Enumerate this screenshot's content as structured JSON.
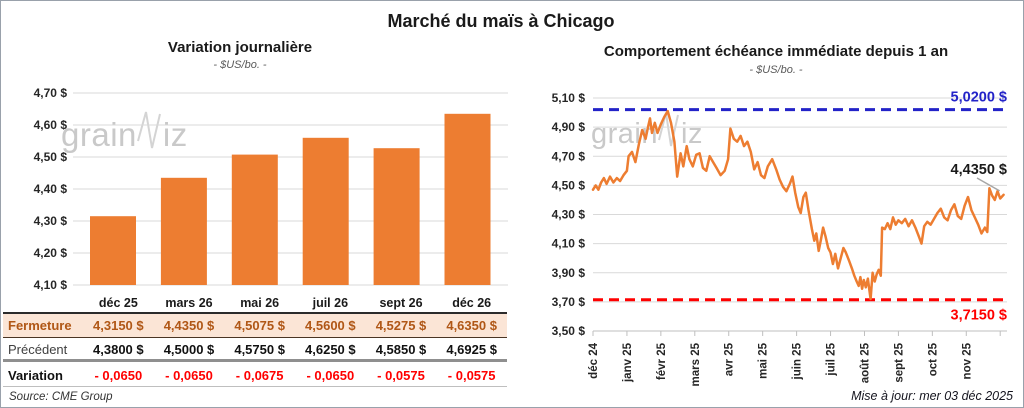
{
  "page": {
    "title": "Marché du maïs à Chicago",
    "source": "Source: CME Group",
    "updated": "Mise à jour: mer 03 déc 2025",
    "watermark_prefix": "grain",
    "watermark_suffix": "iz"
  },
  "colors": {
    "orange": "#ED7D31",
    "resistance_blue": "#2323C8",
    "support_red": "#FF0000",
    "close_row_bg": "#FBE5D6",
    "close_text": "#B05716",
    "gridline": "#D9D9D9",
    "axis": "#BFBFBF"
  },
  "chart_data": [
    {
      "type": "bar",
      "title": "Variation journalière",
      "subtitle": "- $US/bo. -",
      "categories": [
        "déc 25",
        "mars 26",
        "mai 26",
        "juil 26",
        "sept 26",
        "déc 26"
      ],
      "values": [
        4.315,
        4.435,
        4.5075,
        4.56,
        4.5275,
        4.635
      ],
      "ylim": [
        4.1,
        4.7
      ],
      "grid": true,
      "bar_color": "#ED7D31",
      "yticks": [
        {
          "v": 4.7,
          "label": "4,70 $"
        },
        {
          "v": 4.6,
          "label": "4,60 $"
        },
        {
          "v": 4.5,
          "label": "4,50 $"
        },
        {
          "v": 4.4,
          "label": "4,40 $"
        },
        {
          "v": 4.3,
          "label": "4,30 $"
        },
        {
          "v": 4.2,
          "label": "4,20 $"
        },
        {
          "v": 4.1,
          "label": "4,10 $"
        }
      ]
    },
    {
      "type": "line",
      "title": "Comportement échéance immédiate depuis 1 an",
      "subtitle": "- $US/bo. -",
      "ylim": [
        3.5,
        5.1
      ],
      "xmax": 12.2,
      "grid": true,
      "series_color": "#ED7D31",
      "yticks": [
        {
          "v": 5.1,
          "label": "5,10 $"
        },
        {
          "v": 4.9,
          "label": "4,90 $"
        },
        {
          "v": 4.7,
          "label": "4,70 $"
        },
        {
          "v": 4.5,
          "label": "4,50 $"
        },
        {
          "v": 4.3,
          "label": "4,30 $"
        },
        {
          "v": 4.1,
          "label": "4,10 $"
        },
        {
          "v": 3.9,
          "label": "3,90 $"
        },
        {
          "v": 3.7,
          "label": "3,70 $"
        },
        {
          "v": 3.5,
          "label": "3,50 $"
        }
      ],
      "xticks": [
        {
          "m": 0,
          "label": "déc 24"
        },
        {
          "m": 1,
          "label": "janv 25"
        },
        {
          "m": 2,
          "label": "févr 25"
        },
        {
          "m": 3,
          "label": "mars 25"
        },
        {
          "m": 4,
          "label": "avr 25"
        },
        {
          "m": 5,
          "label": "mai 25"
        },
        {
          "m": 6,
          "label": "juin 25"
        },
        {
          "m": 7,
          "label": "juil 25"
        },
        {
          "m": 8,
          "label": "août 25"
        },
        {
          "m": 9,
          "label": "sept 25"
        },
        {
          "m": 10,
          "label": "oct 25"
        },
        {
          "m": 11,
          "label": "nov 25"
        }
      ],
      "reference_lines": [
        {
          "value": 5.02,
          "label": "5,0200 $",
          "color": "#2323C8"
        },
        {
          "value": 3.715,
          "label": "3,7150 $",
          "color": "#FF0000"
        }
      ],
      "last_point": {
        "value": 4.435,
        "label": "4,4350 $"
      },
      "points": [
        [
          0,
          4.47
        ],
        [
          0.08,
          4.5
        ],
        [
          0.16,
          4.47
        ],
        [
          0.24,
          4.52
        ],
        [
          0.32,
          4.55
        ],
        [
          0.4,
          4.51
        ],
        [
          0.5,
          4.56
        ],
        [
          0.6,
          4.52
        ],
        [
          0.7,
          4.55
        ],
        [
          0.8,
          4.53
        ],
        [
          0.9,
          4.57
        ],
        [
          1.0,
          4.6
        ],
        [
          1.05,
          4.7
        ],
        [
          1.15,
          4.73
        ],
        [
          1.25,
          4.66
        ],
        [
          1.35,
          4.78
        ],
        [
          1.45,
          4.88
        ],
        [
          1.55,
          4.82
        ],
        [
          1.62,
          4.9
        ],
        [
          1.68,
          4.96
        ],
        [
          1.74,
          4.86
        ],
        [
          1.82,
          4.93
        ],
        [
          1.9,
          4.86
        ],
        [
          2.0,
          4.92
        ],
        [
          2.1,
          4.97
        ],
        [
          2.2,
          5.01
        ],
        [
          2.3,
          4.93
        ],
        [
          2.4,
          4.8
        ],
        [
          2.48,
          4.56
        ],
        [
          2.58,
          4.72
        ],
        [
          2.66,
          4.63
        ],
        [
          2.76,
          4.77
        ],
        [
          2.84,
          4.68
        ],
        [
          2.94,
          4.63
        ],
        [
          3.04,
          4.71
        ],
        [
          3.14,
          4.72
        ],
        [
          3.24,
          4.62
        ],
        [
          3.34,
          4.6
        ],
        [
          3.44,
          4.7
        ],
        [
          3.54,
          4.66
        ],
        [
          3.64,
          4.62
        ],
        [
          3.76,
          4.57
        ],
        [
          3.88,
          4.6
        ],
        [
          3.98,
          4.68
        ],
        [
          4.05,
          4.89
        ],
        [
          4.15,
          4.82
        ],
        [
          4.25,
          4.8
        ],
        [
          4.35,
          4.84
        ],
        [
          4.45,
          4.77
        ],
        [
          4.55,
          4.8
        ],
        [
          4.65,
          4.73
        ],
        [
          4.75,
          4.61
        ],
        [
          4.85,
          4.66
        ],
        [
          4.95,
          4.57
        ],
        [
          5.05,
          4.55
        ],
        [
          5.15,
          4.63
        ],
        [
          5.28,
          4.68
        ],
        [
          5.4,
          4.61
        ],
        [
          5.5,
          4.54
        ],
        [
          5.6,
          4.49
        ],
        [
          5.7,
          4.46
        ],
        [
          5.8,
          4.51
        ],
        [
          5.88,
          4.56
        ],
        [
          5.96,
          4.45
        ],
        [
          6.05,
          4.35
        ],
        [
          6.12,
          4.31
        ],
        [
          6.2,
          4.42
        ],
        [
          6.27,
          4.45
        ],
        [
          6.35,
          4.33
        ],
        [
          6.45,
          4.2
        ],
        [
          6.52,
          4.12
        ],
        [
          6.58,
          4.17
        ],
        [
          6.65,
          4.05
        ],
        [
          6.72,
          4.13
        ],
        [
          6.78,
          4.21
        ],
        [
          6.85,
          4.15
        ],
        [
          6.93,
          4.07
        ],
        [
          7.0,
          4.04
        ],
        [
          7.07,
          3.96
        ],
        [
          7.14,
          4.03
        ],
        [
          7.22,
          3.93
        ],
        [
          7.3,
          4.0
        ],
        [
          7.38,
          4.07
        ],
        [
          7.45,
          4.04
        ],
        [
          7.55,
          3.98
        ],
        [
          7.63,
          3.93
        ],
        [
          7.7,
          3.88
        ],
        [
          7.77,
          3.84
        ],
        [
          7.83,
          3.81
        ],
        [
          7.88,
          3.87
        ],
        [
          7.93,
          3.79
        ],
        [
          7.98,
          3.85
        ],
        [
          8.04,
          3.8
        ],
        [
          8.1,
          3.86
        ],
        [
          8.14,
          3.79
        ],
        [
          8.18,
          3.72
        ],
        [
          8.24,
          3.9
        ],
        [
          8.3,
          3.84
        ],
        [
          8.36,
          3.89
        ],
        [
          8.42,
          3.92
        ],
        [
          8.48,
          3.88
        ],
        [
          8.52,
          4.21
        ],
        [
          8.6,
          4.2
        ],
        [
          8.68,
          4.24
        ],
        [
          8.76,
          4.2
        ],
        [
          8.84,
          4.28
        ],
        [
          8.92,
          4.23
        ],
        [
          9.0,
          4.26
        ],
        [
          9.1,
          4.24
        ],
        [
          9.2,
          4.27
        ],
        [
          9.3,
          4.22
        ],
        [
          9.4,
          4.26
        ],
        [
          9.5,
          4.21
        ],
        [
          9.6,
          4.15
        ],
        [
          9.68,
          4.1
        ],
        [
          9.76,
          4.22
        ],
        [
          9.85,
          4.25
        ],
        [
          9.95,
          4.23
        ],
        [
          10.05,
          4.27
        ],
        [
          10.15,
          4.31
        ],
        [
          10.25,
          4.34
        ],
        [
          10.35,
          4.28
        ],
        [
          10.45,
          4.26
        ],
        [
          10.55,
          4.33
        ],
        [
          10.65,
          4.37
        ],
        [
          10.75,
          4.29
        ],
        [
          10.85,
          4.27
        ],
        [
          10.95,
          4.36
        ],
        [
          11.05,
          4.42
        ],
        [
          11.15,
          4.33
        ],
        [
          11.25,
          4.28
        ],
        [
          11.35,
          4.23
        ],
        [
          11.45,
          4.17
        ],
        [
          11.55,
          4.21
        ],
        [
          11.62,
          4.18
        ],
        [
          11.68,
          4.48
        ],
        [
          11.76,
          4.43
        ],
        [
          11.84,
          4.4
        ],
        [
          11.92,
          4.46
        ],
        [
          12.0,
          4.41
        ],
        [
          12.1,
          4.435
        ]
      ]
    },
    {
      "type": "table",
      "columns": [
        "déc 25",
        "mars 26",
        "mai 26",
        "juil 26",
        "sept 26",
        "déc 26"
      ],
      "rows": [
        {
          "key": "close",
          "label": "Fermeture",
          "values": [
            "4,3150 $",
            "4,4350 $",
            "4,5075 $",
            "4,5600 $",
            "4,5275 $",
            "4,6350 $"
          ]
        },
        {
          "key": "prev",
          "label": "Précédent",
          "values": [
            "4,3800 $",
            "4,5000 $",
            "4,5750 $",
            "4,6250 $",
            "4,5850 $",
            "4,6925 $"
          ]
        },
        {
          "key": "var",
          "label": "Variation",
          "values": [
            "- 0,0650",
            "- 0,0650",
            "- 0,0675",
            "- 0,0650",
            "- 0,0575",
            "- 0,0575"
          ]
        }
      ]
    }
  ]
}
